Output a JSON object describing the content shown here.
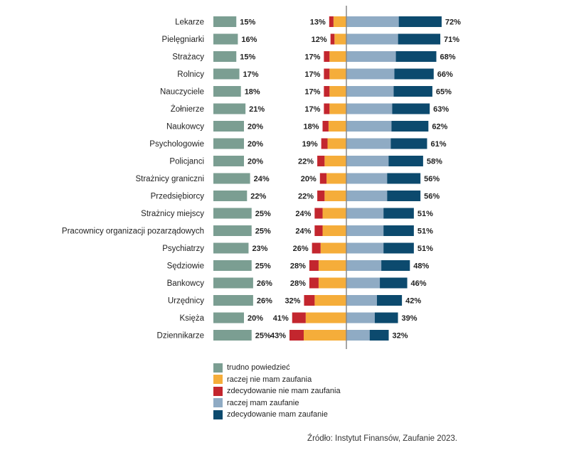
{
  "chart_data": {
    "type": "bar",
    "categories": [
      "Lekarze",
      "Pielęgniarki",
      "Strażacy",
      "Rolnicy",
      "Nauczyciele",
      "Żołnierze",
      "Naukowcy",
      "Psychologowie",
      "Policjanci",
      "Strażnicy graniczni",
      "Przedsiębiorcy",
      "Strażnicy miejscy",
      "Pracownicy organizacji pozarządowych",
      "Psychiatrzy",
      "Sędziowie",
      "Bankowcy",
      "Urzędnicy",
      "Księża",
      "Dziennikarze"
    ],
    "series": [
      {
        "name": "trudno powiedzieć",
        "values": [
          15,
          16,
          15,
          17,
          18,
          21,
          20,
          20,
          20,
          24,
          22,
          25,
          25,
          23,
          25,
          26,
          26,
          20,
          25
        ]
      },
      {
        "name": "raczej nie mam zaufania + zdecydowanie nie mam zaufania",
        "values": [
          13,
          12,
          17,
          17,
          17,
          17,
          18,
          19,
          22,
          20,
          22,
          24,
          24,
          26,
          28,
          28,
          32,
          41,
          43
        ]
      },
      {
        "name": "raczej mam zaufanie + zdecydowanie mam zaufanie",
        "values": [
          72,
          71,
          68,
          66,
          65,
          63,
          62,
          61,
          58,
          56,
          56,
          51,
          51,
          51,
          48,
          46,
          42,
          39,
          32
        ]
      }
    ],
    "unit": "%",
    "legend_placement": "bottom",
    "grid": false
  },
  "legend": [
    {
      "label": "trudno powiedzieć",
      "color": "#7b9e92"
    },
    {
      "label": "raczej nie mam zaufania",
      "color": "#f5ad3a"
    },
    {
      "label": "zdecydowanie nie mam zaufania",
      "color": "#c3262e"
    },
    {
      "label": "raczej mam zaufanie",
      "color": "#8fabc4"
    },
    {
      "label": "zdecydowanie mam zaufanie",
      "color": "#0c4a6e"
    }
  ],
  "colors": {
    "neutral": "#7b9e92",
    "rather_distrust": "#f5ad3a",
    "strong_distrust": "#c3262e",
    "rather_trust": "#8fabc4",
    "strong_trust": "#0c4a6e",
    "axis": "#888888"
  },
  "source": "Źródło: Instytut Finansów, Zaufanie 2023."
}
